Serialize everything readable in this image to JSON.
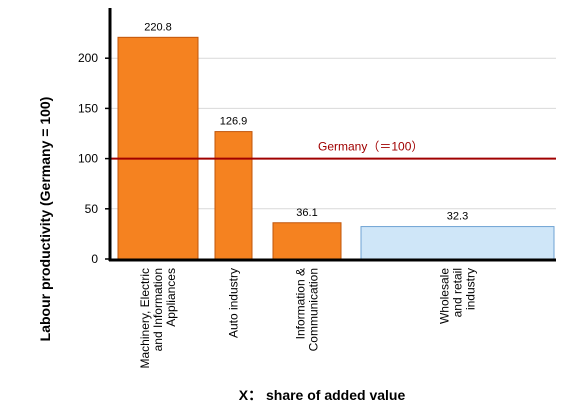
{
  "chart_data": {
    "type": "bar",
    "title": "",
    "xlabel": "X： share of added value",
    "ylabel": "Labour productivity (Germany = 100)",
    "ylim": [
      0,
      250
    ],
    "yticks": [
      0,
      50,
      100,
      150,
      200
    ],
    "grid": true,
    "categories": [
      "Machinery, Electric and Information Appliances",
      "Auto industry",
      "Information & Communication",
      "Wholesale and retail industry"
    ],
    "category_lines": [
      [
        "Machinery, Electric",
        "and Information",
        "Appliances"
      ],
      [
        "Auto industry"
      ],
      [
        "Information &",
        "Communication"
      ],
      [
        "Wholesale",
        "and retail",
        "industry"
      ]
    ],
    "values": [
      220.8,
      126.9,
      36.1,
      32.3
    ],
    "value_labels": [
      "220.8",
      "126.9",
      "36.1",
      "32.3"
    ],
    "reference_line": {
      "label": "Germany（＝100）",
      "value": 100,
      "color": "#a00000"
    },
    "colors": [
      "#f58220",
      "#f58220",
      "#f58220",
      "#cfe6f8"
    ],
    "edge_colors": [
      "#c0550a",
      "#c0550a",
      "#c0550a",
      "#6fa3d3"
    ]
  }
}
